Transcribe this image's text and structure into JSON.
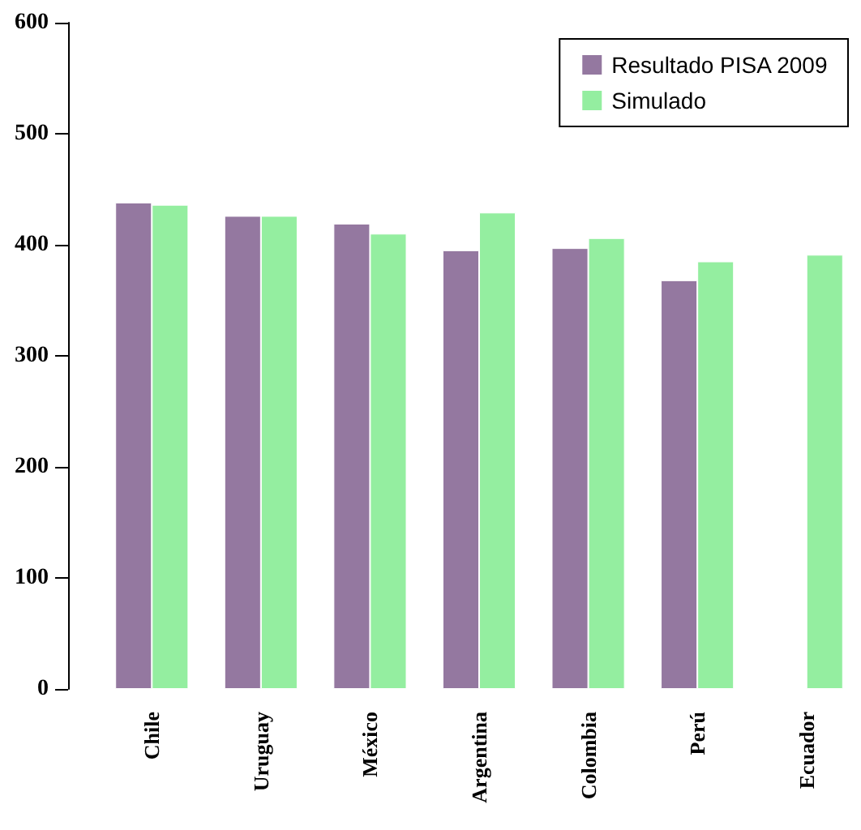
{
  "chart_data": {
    "type": "bar",
    "categories": [
      "Chile",
      "Uruguay",
      "México",
      "Argentina",
      "Colombia",
      "Perú",
      "Ecuador"
    ],
    "series": [
      {
        "name": "Resultado PISA 2009",
        "color": "#9478a0",
        "values": [
          438,
          426,
          419,
          395,
          397,
          368,
          null
        ]
      },
      {
        "name": "Simulado",
        "color": "#94eea0",
        "values": [
          436,
          426,
          410,
          429,
          406,
          385,
          391
        ]
      }
    ],
    "ylim": [
      0,
      600
    ],
    "yticks": [
      0,
      100,
      200,
      300,
      400,
      500,
      600
    ],
    "grid": false,
    "legend": "top right"
  }
}
